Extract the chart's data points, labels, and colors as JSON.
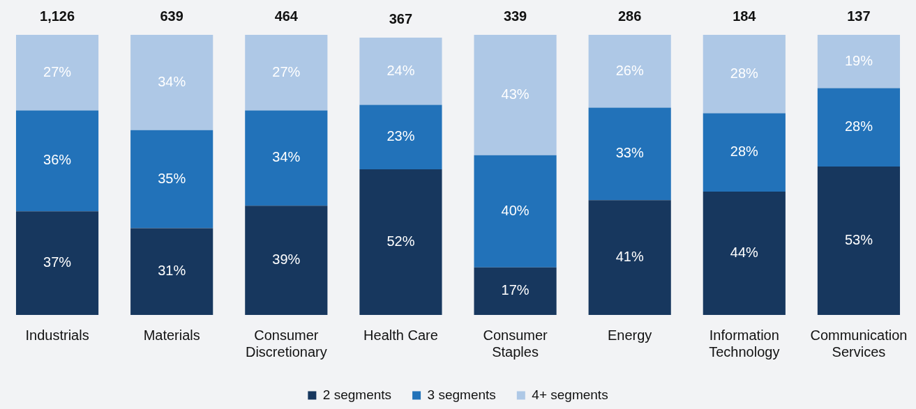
{
  "chart_data": {
    "type": "bar",
    "stacked": true,
    "legend": "bottom",
    "ylim": [
      0,
      100
    ],
    "categories": [
      "Industrials",
      "Materials",
      "Consumer Discretionary",
      "Health Care",
      "Consumer Staples",
      "Energy",
      "Information Technology",
      "Communication Services"
    ],
    "series": [
      {
        "name": "2 segments",
        "color": "#17375e",
        "values": [
          37,
          31,
          39,
          52,
          17,
          41,
          44,
          53
        ],
        "value_labels": [
          "37%",
          "31%",
          "39%",
          "52%",
          "17%",
          "41%",
          "44%",
          "53%"
        ]
      },
      {
        "name": "3 segments",
        "color": "#2272b9",
        "values": [
          36,
          35,
          34,
          23,
          40,
          33,
          28,
          28
        ],
        "value_labels": [
          "36%",
          "35%",
          "34%",
          "23%",
          "40%",
          "33%",
          "28%",
          "28%"
        ]
      },
      {
        "name": "4+ segments",
        "color": "#aec8e6",
        "values": [
          27,
          34,
          27,
          24,
          43,
          26,
          28,
          19
        ],
        "value_labels": [
          "27%",
          "34%",
          "27%",
          "24%",
          "43%",
          "26%",
          "28%",
          "19%"
        ]
      }
    ],
    "annotations": [
      "1,126",
      "639",
      "464",
      "367",
      "339",
      "286",
      "184",
      "137"
    ]
  }
}
